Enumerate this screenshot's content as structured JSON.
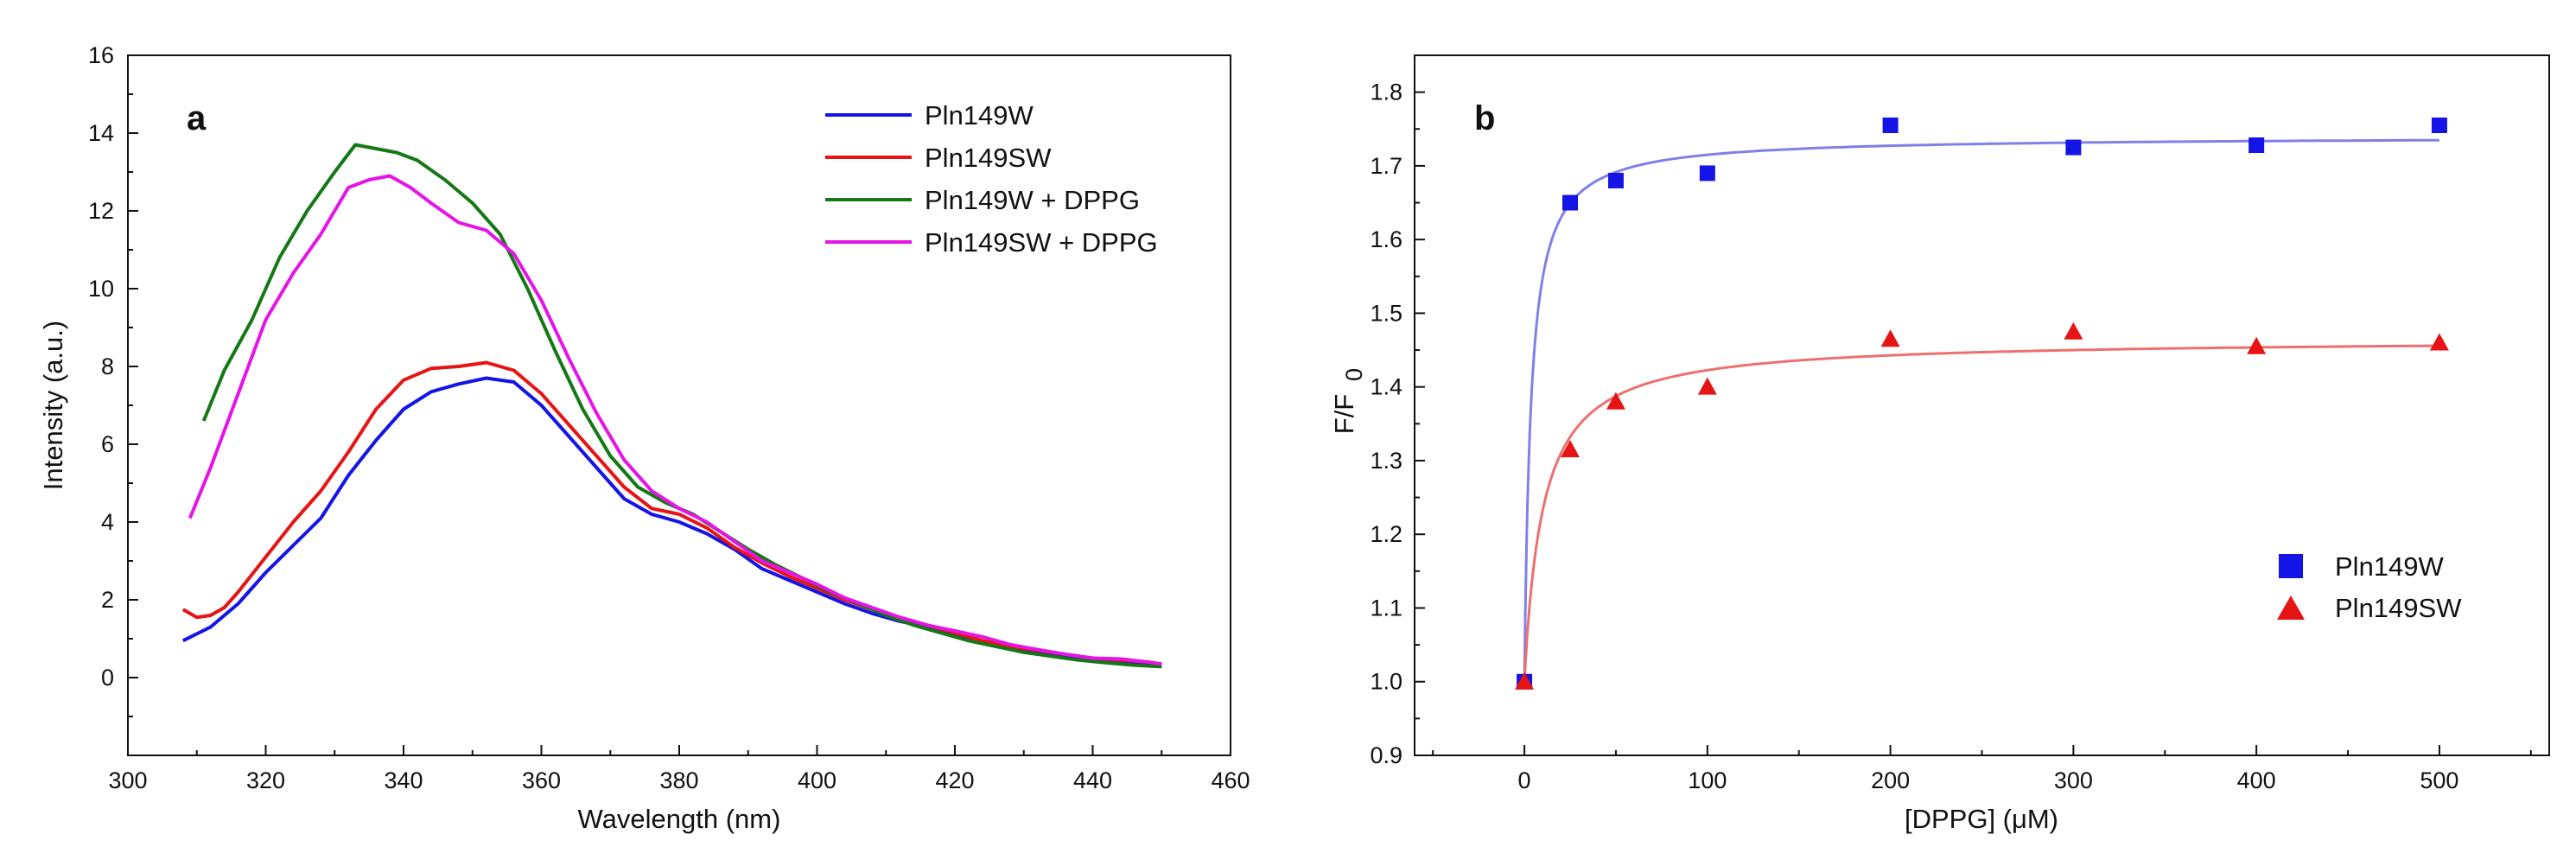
{
  "chart_data": [
    {
      "panel": "a",
      "type": "line",
      "xlabel": "Wavelength (nm)",
      "ylabel": "Intensity (a.u.)",
      "xlim": [
        300,
        460
      ],
      "ylim": [
        -2,
        16
      ],
      "xticks": [
        300,
        320,
        340,
        360,
        380,
        400,
        420,
        440,
        460
      ],
      "yticks": [
        0,
        2,
        4,
        6,
        8,
        10,
        12,
        14,
        16
      ],
      "legend_position": "top-right",
      "series": [
        {
          "name": "Pln149W",
          "color": "#1414e6",
          "x": [
            308,
            312,
            316,
            320,
            324,
            328,
            332,
            336,
            340,
            344,
            348,
            352,
            356,
            360,
            364,
            368,
            372,
            376,
            380,
            384,
            388,
            392,
            396,
            400,
            404,
            408,
            412,
            416,
            420,
            424,
            428,
            432,
            436,
            440,
            444,
            448,
            450
          ],
          "y": [
            0.95,
            1.3,
            1.9,
            2.7,
            3.4,
            4.1,
            5.2,
            6.1,
            6.9,
            7.35,
            7.55,
            7.7,
            7.6,
            7.0,
            6.2,
            5.4,
            4.6,
            4.2,
            4.0,
            3.7,
            3.3,
            2.8,
            2.5,
            2.2,
            1.9,
            1.65,
            1.45,
            1.3,
            1.1,
            0.9,
            0.75,
            0.65,
            0.55,
            0.45,
            0.4,
            0.35,
            0.3
          ]
        },
        {
          "name": "Pln149SW",
          "color": "#e61414",
          "x": [
            308,
            310,
            312,
            314,
            316,
            320,
            324,
            328,
            332,
            336,
            340,
            344,
            348,
            352,
            356,
            360,
            364,
            368,
            372,
            376,
            380,
            384,
            388,
            392,
            396,
            400,
            404,
            408,
            412,
            416,
            420,
            424,
            428,
            432,
            436,
            440,
            444,
            448,
            450
          ],
          "y": [
            1.75,
            1.55,
            1.6,
            1.8,
            2.2,
            3.1,
            4.0,
            4.8,
            5.8,
            6.9,
            7.65,
            7.95,
            8.0,
            8.1,
            7.9,
            7.3,
            6.5,
            5.7,
            4.9,
            4.35,
            4.2,
            3.85,
            3.35,
            2.95,
            2.6,
            2.3,
            2.0,
            1.75,
            1.55,
            1.35,
            1.15,
            0.95,
            0.8,
            0.7,
            0.6,
            0.5,
            0.45,
            0.4,
            0.35
          ]
        },
        {
          "name": "Pln149W + DPPG",
          "color": "#147814",
          "x": [
            311,
            314,
            318,
            322,
            326,
            330,
            333,
            336,
            339,
            342,
            346,
            350,
            354,
            358,
            362,
            366,
            370,
            374,
            378,
            382,
            386,
            390,
            394,
            398,
            402,
            406,
            410,
            414,
            418,
            422,
            426,
            430,
            434,
            438,
            442,
            446,
            450
          ],
          "y": [
            6.6,
            7.9,
            9.2,
            10.8,
            12.0,
            13.0,
            13.7,
            13.6,
            13.5,
            13.3,
            12.8,
            12.2,
            11.4,
            10.0,
            8.4,
            6.9,
            5.7,
            4.9,
            4.5,
            4.2,
            3.75,
            3.3,
            2.9,
            2.55,
            2.2,
            1.9,
            1.6,
            1.35,
            1.15,
            0.95,
            0.8,
            0.65,
            0.55,
            0.45,
            0.38,
            0.32,
            0.28
          ]
        },
        {
          "name": "Pln149SW + DPPG",
          "color": "#e614e6",
          "x": [
            309,
            312,
            316,
            320,
            324,
            328,
            332,
            335,
            338,
            341,
            344,
            348,
            352,
            356,
            360,
            364,
            368,
            372,
            376,
            380,
            384,
            388,
            392,
            396,
            400,
            404,
            408,
            412,
            416,
            420,
            424,
            428,
            432,
            436,
            440,
            444,
            448,
            450
          ],
          "y": [
            4.1,
            5.4,
            7.3,
            9.2,
            10.4,
            11.4,
            12.6,
            12.8,
            12.9,
            12.6,
            12.2,
            11.7,
            11.5,
            10.9,
            9.7,
            8.2,
            6.8,
            5.6,
            4.8,
            4.35,
            4.0,
            3.5,
            3.0,
            2.7,
            2.4,
            2.05,
            1.8,
            1.55,
            1.35,
            1.2,
            1.05,
            0.85,
            0.72,
            0.6,
            0.5,
            0.48,
            0.4,
            0.35
          ]
        }
      ],
      "panel_label": "a"
    },
    {
      "panel": "b",
      "type": "scatter",
      "xlabel": "[DPPG] (μM)",
      "ylabel": "F/F",
      "ylabel_sub": "0",
      "xlim": [
        -60,
        560
      ],
      "ylim": [
        0.9,
        1.85
      ],
      "xticks": [
        0,
        100,
        200,
        300,
        400,
        500
      ],
      "yticks": [
        0.9,
        1.0,
        1.1,
        1.2,
        1.3,
        1.4,
        1.5,
        1.6,
        1.7,
        1.8
      ],
      "legend_position": "bottom-right",
      "series": [
        {
          "name": "Pln149W",
          "color": "#1414e6",
          "marker": "square",
          "x": [
            0,
            25,
            50,
            100,
            200,
            300,
            400,
            500
          ],
          "y": [
            1.0,
            1.65,
            1.68,
            1.69,
            1.755,
            1.725,
            1.728,
            1.755
          ],
          "fit": {
            "y0": 1.0,
            "amplitude": 0.74,
            "kd": 3.5,
            "color": "#8080e8"
          }
        },
        {
          "name": "Pln149SW",
          "color": "#e61414",
          "marker": "triangle",
          "x": [
            0,
            25,
            50,
            100,
            200,
            300,
            400,
            500
          ],
          "y": [
            1.0,
            1.315,
            1.38,
            1.4,
            1.465,
            1.475,
            1.455,
            1.46
          ],
          "fit": {
            "y0": 1.0,
            "amplitude": 0.465,
            "kd": 10,
            "color": "#ec7070"
          }
        }
      ],
      "panel_label": "b"
    }
  ]
}
